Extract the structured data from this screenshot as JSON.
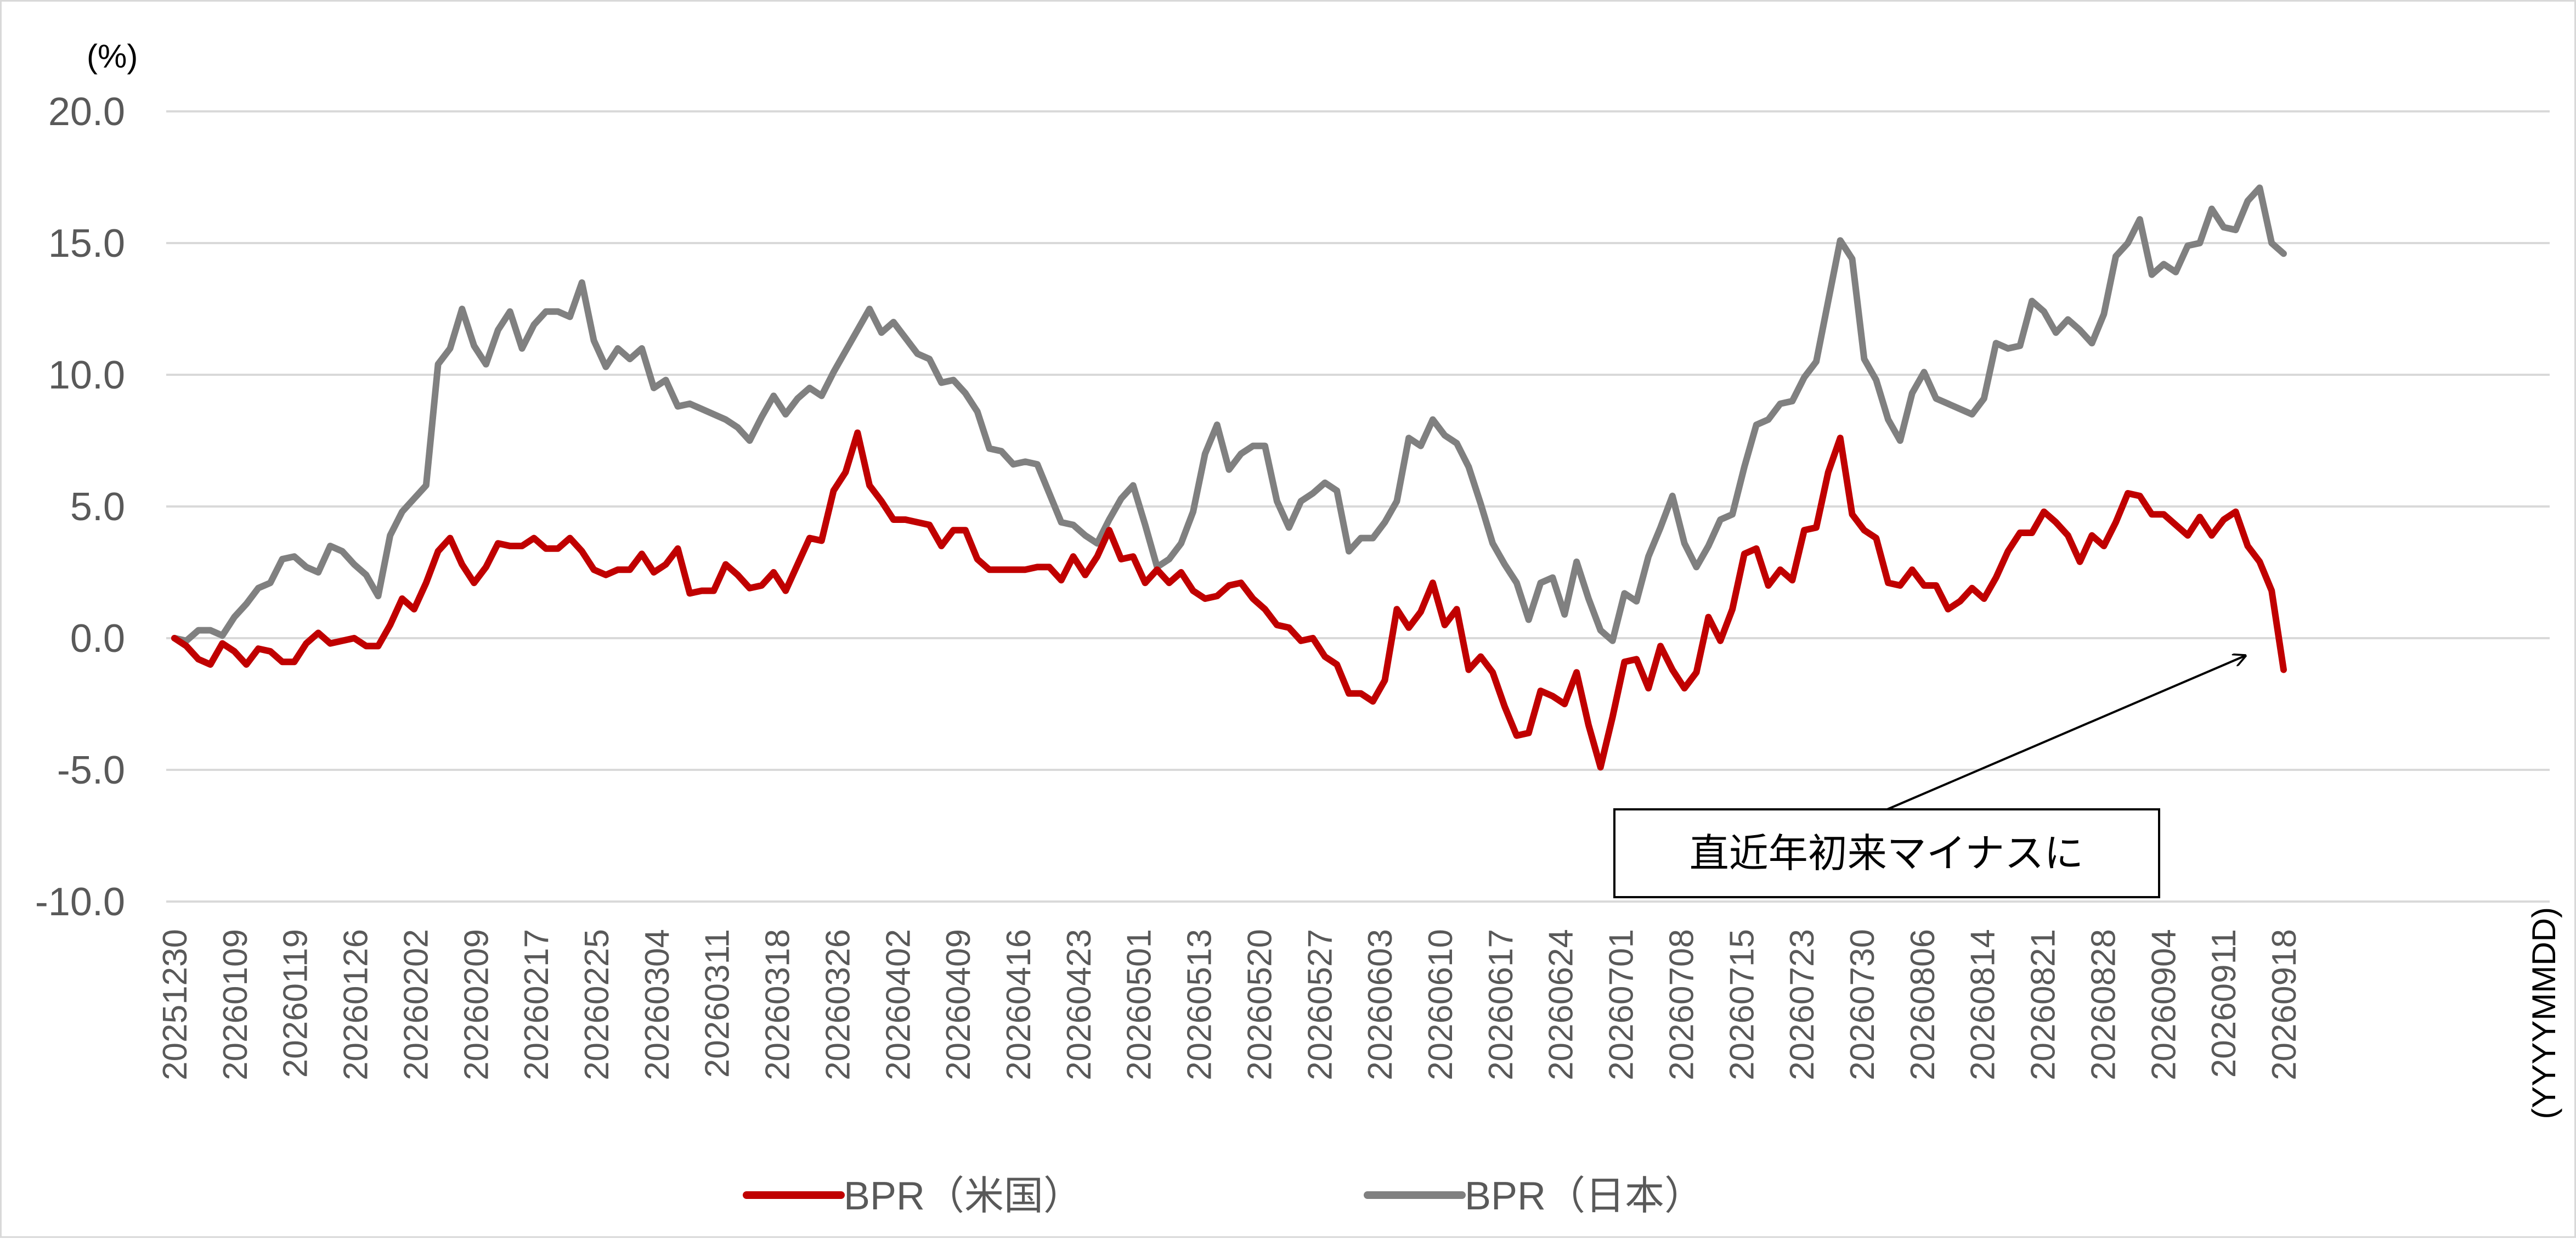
{
  "chart_data": {
    "type": "line",
    "y_unit_label": "(%)",
    "x_unit_label": "(YYYYMMDD)",
    "ylim": [
      -10,
      20
    ],
    "y_ticks": [
      "20.0",
      "15.0",
      "10.0",
      "5.0",
      "0.0",
      "-5.0",
      "-10.0"
    ],
    "grid": "horizontal",
    "legend_position": "bottom",
    "x_tick_labels": [
      "20251230",
      "20260109",
      "20260119",
      "20260126",
      "20260202",
      "20260209",
      "20260217",
      "20260225",
      "20260304",
      "20260311",
      "20260318",
      "20260326",
      "20260402",
      "20260409",
      "20260416",
      "20260423",
      "20260501",
      "20260513",
      "20260520",
      "20260527",
      "20260603",
      "20260610",
      "20260617",
      "20260624",
      "20260701",
      "20260708",
      "20260715",
      "20260723",
      "20260730",
      "20260806",
      "20260814",
      "20260821",
      "20260828",
      "20260904",
      "20260911",
      "20260918"
    ],
    "series": [
      {
        "name": "BPR（米国）",
        "color": "#c00000",
        "values": [
          0.0,
          -0.3,
          -0.8,
          -1.0,
          -0.2,
          -0.5,
          -1.0,
          -0.4,
          -0.5,
          -0.9,
          -0.9,
          -0.2,
          0.2,
          -0.2,
          -0.1,
          0.0,
          -0.3,
          -0.3,
          0.5,
          1.5,
          1.1,
          2.1,
          3.3,
          3.8,
          2.8,
          2.1,
          2.7,
          3.6,
          3.5,
          3.5,
          3.8,
          3.4,
          3.4,
          3.8,
          3.3,
          2.6,
          2.4,
          2.6,
          2.6,
          3.2,
          2.5,
          2.8,
          3.4,
          1.7,
          1.8,
          1.8,
          2.8,
          2.4,
          1.9,
          2.0,
          2.5,
          1.8,
          2.8,
          3.8,
          3.7,
          5.6,
          6.3,
          7.8,
          5.8,
          5.2,
          4.5,
          4.5,
          4.4,
          4.3,
          3.5,
          4.1,
          4.1,
          3.0,
          2.6,
          2.6,
          2.6,
          2.6,
          2.7,
          2.7,
          2.2,
          3.1,
          2.4,
          3.1,
          4.1,
          3.0,
          3.1,
          2.1,
          2.6,
          2.1,
          2.5,
          1.8,
          1.5,
          1.6,
          2.0,
          2.1,
          1.5,
          1.1,
          0.5,
          0.4,
          -0.1,
          0.0,
          -0.7,
          -1.0,
          -2.1,
          -2.1,
          -2.4,
          -1.6,
          1.1,
          0.4,
          1.0,
          2.1,
          0.5,
          1.1,
          -1.2,
          -0.7,
          -1.3,
          -2.6,
          -3.7,
          -3.6,
          -2.0,
          -2.2,
          -2.5,
          -1.3,
          -3.3,
          -4.9,
          -3.0,
          -0.9,
          -0.8,
          -1.9,
          -0.3,
          -1.2,
          -1.9,
          -1.3,
          0.8,
          -0.1,
          1.1,
          3.2,
          3.4,
          2.0,
          2.6,
          2.2,
          4.1,
          4.2,
          6.3,
          7.6,
          4.7,
          4.1,
          3.8,
          2.1,
          2.0,
          2.6,
          2.0,
          2.0,
          1.1,
          1.4,
          1.9,
          1.5,
          2.3,
          3.3,
          4.0,
          4.0,
          4.8,
          4.4,
          3.9,
          2.9,
          3.9,
          3.5,
          4.4,
          5.5,
          5.4,
          4.7,
          4.7,
          4.3,
          3.9,
          4.6,
          3.9,
          4.5,
          4.8,
          3.5,
          2.9,
          1.8,
          -1.2
        ]
      },
      {
        "name": "BPR（日本）",
        "color": "#808080",
        "values": [
          0.0,
          -0.1,
          0.3,
          0.3,
          0.1,
          0.8,
          1.3,
          1.9,
          2.1,
          3.0,
          3.1,
          2.7,
          2.5,
          3.5,
          3.3,
          2.8,
          2.4,
          1.6,
          3.9,
          4.8,
          5.3,
          5.8,
          10.4,
          11.0,
          12.5,
          11.1,
          10.4,
          11.7,
          12.4,
          11.0,
          11.9,
          12.4,
          12.4,
          12.2,
          13.5,
          11.3,
          10.3,
          11.0,
          10.6,
          11.0,
          9.5,
          9.8,
          8.8,
          8.9,
          8.7,
          8.5,
          8.3,
          8.0,
          7.5,
          8.4,
          9.2,
          8.5,
          9.1,
          9.5,
          9.2,
          10.1,
          10.9,
          11.7,
          12.5,
          11.6,
          12.0,
          11.4,
          10.8,
          10.6,
          9.7,
          9.8,
          9.3,
          8.6,
          7.2,
          7.1,
          6.6,
          6.7,
          6.6,
          5.5,
          4.4,
          4.3,
          3.9,
          3.6,
          4.5,
          5.3,
          5.8,
          4.3,
          2.7,
          3.0,
          3.6,
          4.8,
          7.0,
          8.1,
          6.4,
          7.0,
          7.3,
          7.3,
          5.2,
          4.2,
          5.2,
          5.5,
          5.9,
          5.6,
          3.3,
          3.8,
          3.8,
          4.4,
          5.2,
          7.6,
          7.3,
          8.3,
          7.7,
          7.4,
          6.5,
          5.1,
          3.6,
          2.8,
          2.1,
          0.7,
          2.1,
          2.3,
          0.9,
          2.9,
          1.5,
          0.3,
          -0.1,
          1.7,
          1.4,
          3.1,
          4.2,
          5.4,
          3.6,
          2.7,
          3.5,
          4.5,
          4.7,
          6.5,
          8.1,
          8.3,
          8.9,
          9.0,
          9.9,
          10.5,
          12.8,
          15.1,
          14.4,
          10.6,
          9.8,
          8.3,
          7.5,
          9.3,
          10.1,
          9.1,
          8.9,
          8.7,
          8.5,
          9.1,
          11.2,
          11.0,
          11.1,
          12.8,
          12.4,
          11.6,
          12.1,
          11.7,
          11.2,
          12.3,
          14.5,
          15.0,
          15.9,
          13.8,
          14.2,
          13.9,
          14.9,
          15.0,
          16.3,
          15.6,
          15.5,
          16.6,
          17.1,
          15.0,
          14.6
        ]
      }
    ],
    "annotation": {
      "text": "直近年初来マイナスに"
    }
  }
}
